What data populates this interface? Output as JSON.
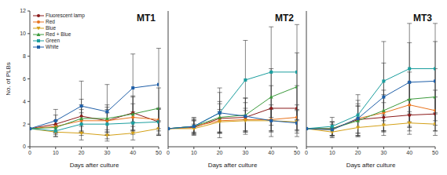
{
  "chart_data": [
    {
      "type": "line",
      "title": "MT1",
      "x_label": "Days after culture",
      "y_label": "No. of PLBs",
      "legend": "upper left",
      "x": [
        0,
        10,
        20,
        30,
        40,
        50
      ],
      "xlim": [
        0,
        50
      ],
      "xticks": [
        0,
        10,
        20,
        30,
        40,
        50
      ],
      "ylim": [
        0,
        12
      ],
      "yticks": [
        0,
        2,
        4,
        6,
        8,
        10,
        12
      ],
      "series": [
        {
          "name": "Fluorescent lamp",
          "color": "#8b1a1a",
          "marker": "circle",
          "values": [
            1.6,
            2.0,
            2.7,
            2.3,
            3.0,
            2.2
          ],
          "errors": [
            0,
            0.8,
            1.5,
            1.2,
            1.5,
            1.2
          ]
        },
        {
          "name": "Red",
          "color": "#e8731c",
          "marker": "circle",
          "values": [
            1.6,
            1.8,
            2.3,
            2.3,
            2.6,
            2.4
          ],
          "errors": [
            0,
            0.5,
            1.0,
            1.0,
            1.2,
            1.0
          ]
        },
        {
          "name": "Blue",
          "color": "#d4a017",
          "marker": "triangle-down",
          "values": [
            1.6,
            1.3,
            1.2,
            1.0,
            1.2,
            1.6
          ],
          "errors": [
            0,
            0.4,
            0.6,
            0.5,
            0.6,
            0.6
          ]
        },
        {
          "name": "Red + Blue",
          "color": "#3c9a3c",
          "marker": "triangle",
          "values": [
            1.6,
            1.7,
            2.5,
            2.5,
            2.9,
            3.4
          ],
          "errors": [
            0,
            0.6,
            1.2,
            1.2,
            1.5,
            1.8
          ]
        },
        {
          "name": "Green",
          "color": "#1a9e9e",
          "marker": "square",
          "values": [
            1.6,
            1.4,
            2.0,
            2.0,
            2.1,
            2.2
          ],
          "errors": [
            0,
            0.5,
            1.0,
            1.0,
            1.0,
            1.1
          ]
        },
        {
          "name": "White",
          "color": "#1f5fa8",
          "marker": "square",
          "values": [
            1.6,
            2.3,
            3.6,
            3.1,
            5.2,
            5.5
          ],
          "errors": [
            0,
            1.0,
            2.2,
            2.4,
            3.0,
            3.2
          ]
        }
      ]
    },
    {
      "type": "line",
      "title": "MT2",
      "x_label": "Days after culture",
      "tick_labels": "x",
      "x": [
        0,
        10,
        20,
        30,
        40,
        50
      ],
      "xlim": [
        0,
        50
      ],
      "xticks": [
        0,
        10,
        20,
        30,
        40,
        50
      ],
      "ylim": [
        0,
        12
      ],
      "yticks": [
        0,
        2,
        4,
        6,
        8,
        10,
        12
      ],
      "series": [
        {
          "name": "Fluorescent lamp",
          "color": "#8b1a1a",
          "marker": "circle",
          "values": [
            1.6,
            1.7,
            2.5,
            2.6,
            3.4,
            3.4
          ],
          "errors": [
            0,
            0.6,
            1.3,
            1.3,
            2.0,
            2.0
          ]
        },
        {
          "name": "Red",
          "color": "#e8731c",
          "marker": "circle",
          "values": [
            1.6,
            1.8,
            2.3,
            2.4,
            2.4,
            2.6
          ],
          "errors": [
            0,
            0.5,
            1.0,
            1.0,
            1.0,
            1.1
          ]
        },
        {
          "name": "Blue",
          "color": "#d4a017",
          "marker": "triangle-down",
          "values": [
            1.6,
            1.6,
            2.2,
            2.3,
            2.3,
            2.2
          ],
          "errors": [
            0,
            0.4,
            0.9,
            0.9,
            1.0,
            1.0
          ]
        },
        {
          "name": "Red + Blue",
          "color": "#3c9a3c",
          "marker": "triangle",
          "values": [
            1.6,
            1.8,
            2.6,
            2.8,
            4.4,
            5.3
          ],
          "errors": [
            0,
            0.6,
            1.4,
            1.5,
            2.5,
            3.0
          ]
        },
        {
          "name": "Green",
          "color": "#1a9e9e",
          "marker": "square",
          "values": [
            1.6,
            1.8,
            3.0,
            5.9,
            6.6,
            6.6
          ],
          "errors": [
            0,
            0.8,
            2.2,
            3.5,
            4.0,
            4.2
          ]
        },
        {
          "name": "White",
          "color": "#1f5fa8",
          "marker": "square",
          "values": [
            1.6,
            1.8,
            3.0,
            2.7,
            2.3,
            2.1
          ],
          "errors": [
            0,
            0.7,
            1.8,
            1.6,
            1.4,
            1.2
          ]
        }
      ]
    },
    {
      "type": "line",
      "title": "MT3",
      "x_label": "Days after culture",
      "tick_labels": "x",
      "x": [
        0,
        10,
        20,
        30,
        40,
        50
      ],
      "xlim": [
        0,
        50
      ],
      "xticks": [
        0,
        10,
        20,
        30,
        40,
        50
      ],
      "ylim": [
        0,
        12
      ],
      "yticks": [
        0,
        2,
        4,
        6,
        8,
        10,
        12
      ],
      "series": [
        {
          "name": "Fluorescent lamp",
          "color": "#8b1a1a",
          "marker": "circle",
          "values": [
            1.6,
            1.6,
            2.4,
            2.6,
            2.8,
            2.9
          ],
          "errors": [
            0,
            0.6,
            1.2,
            1.3,
            1.4,
            1.5
          ]
        },
        {
          "name": "Red",
          "color": "#e8731c",
          "marker": "circle",
          "values": [
            1.6,
            1.5,
            2.5,
            3.0,
            3.7,
            3.2
          ],
          "errors": [
            0,
            0.5,
            1.3,
            1.6,
            2.0,
            1.8
          ]
        },
        {
          "name": "Blue",
          "color": "#d4a017",
          "marker": "triangle-down",
          "values": [
            1.6,
            1.3,
            1.7,
            1.9,
            2.1,
            2.0
          ],
          "errors": [
            0,
            0.4,
            0.8,
            0.9,
            1.0,
            1.0
          ]
        },
        {
          "name": "Red + Blue",
          "color": "#3c9a3c",
          "marker": "triangle",
          "values": [
            1.6,
            1.6,
            2.3,
            3.2,
            4.2,
            4.4
          ],
          "errors": [
            0,
            0.6,
            1.3,
            1.8,
            2.4,
            2.5
          ]
        },
        {
          "name": "Green",
          "color": "#1a9e9e",
          "marker": "square",
          "values": [
            1.6,
            1.8,
            2.8,
            5.8,
            6.9,
            6.9
          ],
          "errors": [
            0,
            0.8,
            1.8,
            3.5,
            4.0,
            4.0
          ]
        },
        {
          "name": "White",
          "color": "#1f5fa8",
          "marker": "square",
          "values": [
            1.6,
            1.5,
            2.5,
            4.4,
            5.7,
            5.8
          ],
          "errors": [
            0,
            0.7,
            1.6,
            3.0,
            3.5,
            3.5
          ]
        }
      ]
    }
  ]
}
